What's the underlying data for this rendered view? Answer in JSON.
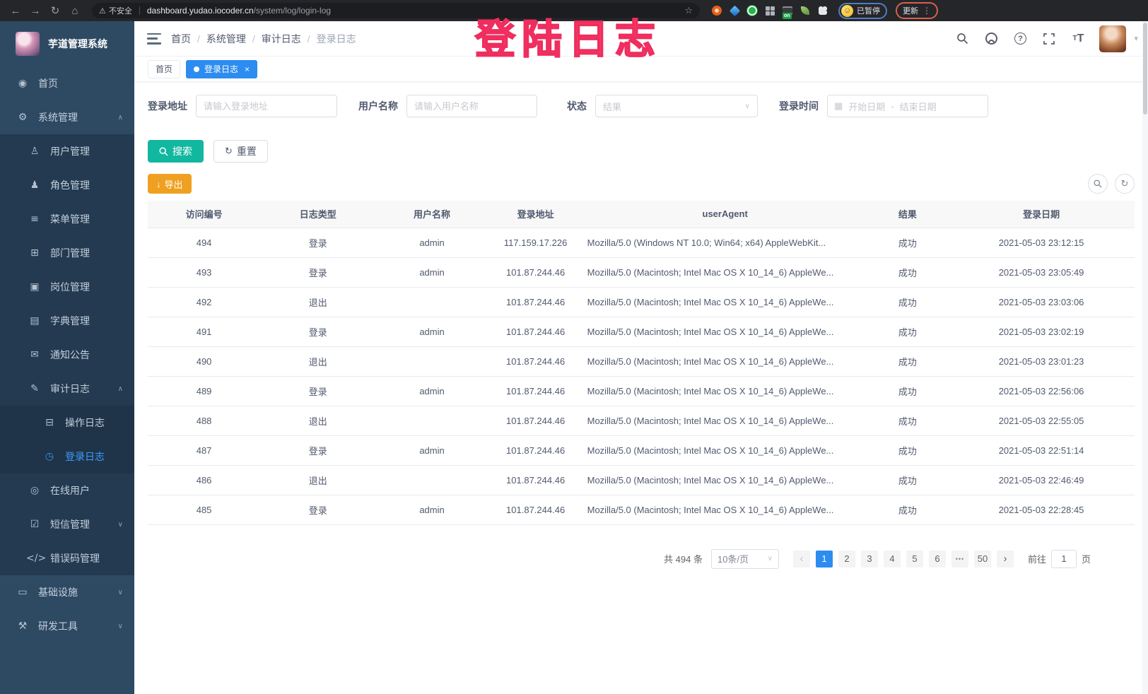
{
  "browser": {
    "security_label": "不安全",
    "url_domain": "dashboard.yudao.iocoder.cn",
    "url_path": "/system/log/login-log",
    "ext_badge": "on",
    "profile_paused": "已暂停",
    "update_button": "更新"
  },
  "annotation": "登陆日志",
  "sidebar": {
    "title": "芋道管理系统",
    "items": [
      {
        "label": "首页",
        "level": 0,
        "icon": "dashboard"
      },
      {
        "label": "系统管理",
        "level": 0,
        "icon": "system",
        "arrow": "up"
      },
      {
        "label": "用户管理",
        "level": 1,
        "icon": "user"
      },
      {
        "label": "角色管理",
        "level": 1,
        "icon": "role"
      },
      {
        "label": "菜单管理",
        "level": 1,
        "icon": "menu"
      },
      {
        "label": "部门管理",
        "level": 1,
        "icon": "dept"
      },
      {
        "label": "岗位管理",
        "level": 1,
        "icon": "post"
      },
      {
        "label": "字典管理",
        "level": 1,
        "icon": "dict"
      },
      {
        "label": "通知公告",
        "level": 1,
        "icon": "notice"
      },
      {
        "label": "审计日志",
        "level": 1,
        "icon": "audit-log",
        "arrow": "up"
      },
      {
        "label": "操作日志",
        "level": 2,
        "icon": "operate-log"
      },
      {
        "label": "登录日志",
        "level": 2,
        "icon": "login-log",
        "active": true
      },
      {
        "label": "在线用户",
        "level": 1,
        "icon": "online-user"
      },
      {
        "label": "短信管理",
        "level": 1,
        "icon": "sms",
        "arrow": "down"
      },
      {
        "label": "错误码管理",
        "level": 1,
        "icon": "error-code"
      },
      {
        "label": "基础设施",
        "level": 0,
        "icon": "infra",
        "arrow": "down"
      },
      {
        "label": "研发工具",
        "level": 0,
        "icon": "devtools",
        "arrow": "down"
      }
    ]
  },
  "breadcrumb": [
    "首页",
    "系统管理",
    "审计日志",
    "登录日志"
  ],
  "tabs": [
    {
      "label": "首页",
      "active": false
    },
    {
      "label": "登录日志",
      "active": true
    }
  ],
  "filters": {
    "login_address_label": "登录地址",
    "login_address_placeholder": "请输入登录地址",
    "username_label": "用户名称",
    "username_placeholder": "请输入用户名称",
    "status_label": "状态",
    "status_placeholder": "结果",
    "login_time_label": "登录时间",
    "date_start_placeholder": "开始日期",
    "date_separator": "-",
    "date_end_placeholder": "结束日期",
    "search_button": "搜索",
    "reset_button": "重置"
  },
  "toolbar": {
    "export_button": "导出"
  },
  "table": {
    "headers": [
      "访问编号",
      "日志类型",
      "用户名称",
      "登录地址",
      "userAgent",
      "结果",
      "登录日期"
    ],
    "rows": [
      [
        "494",
        "登录",
        "admin",
        "117.159.17.226",
        "Mozilla/5.0 (Windows NT 10.0; Win64; x64) AppleWebKit...",
        "成功",
        "2021-05-03 23:12:15"
      ],
      [
        "493",
        "登录",
        "admin",
        "101.87.244.46",
        "Mozilla/5.0 (Macintosh; Intel Mac OS X 10_14_6) AppleWe...",
        "成功",
        "2021-05-03 23:05:49"
      ],
      [
        "492",
        "退出",
        "",
        "101.87.244.46",
        "Mozilla/5.0 (Macintosh; Intel Mac OS X 10_14_6) AppleWe...",
        "成功",
        "2021-05-03 23:03:06"
      ],
      [
        "491",
        "登录",
        "admin",
        "101.87.244.46",
        "Mozilla/5.0 (Macintosh; Intel Mac OS X 10_14_6) AppleWe...",
        "成功",
        "2021-05-03 23:02:19"
      ],
      [
        "490",
        "退出",
        "",
        "101.87.244.46",
        "Mozilla/5.0 (Macintosh; Intel Mac OS X 10_14_6) AppleWe...",
        "成功",
        "2021-05-03 23:01:23"
      ],
      [
        "489",
        "登录",
        "admin",
        "101.87.244.46",
        "Mozilla/5.0 (Macintosh; Intel Mac OS X 10_14_6) AppleWe...",
        "成功",
        "2021-05-03 22:56:06"
      ],
      [
        "488",
        "退出",
        "",
        "101.87.244.46",
        "Mozilla/5.0 (Macintosh; Intel Mac OS X 10_14_6) AppleWe...",
        "成功",
        "2021-05-03 22:55:05"
      ],
      [
        "487",
        "登录",
        "admin",
        "101.87.244.46",
        "Mozilla/5.0 (Macintosh; Intel Mac OS X 10_14_6) AppleWe...",
        "成功",
        "2021-05-03 22:51:14"
      ],
      [
        "486",
        "退出",
        "",
        "101.87.244.46",
        "Mozilla/5.0 (Macintosh; Intel Mac OS X 10_14_6) AppleWe...",
        "成功",
        "2021-05-03 22:46:49"
      ],
      [
        "485",
        "登录",
        "admin",
        "101.87.244.46",
        "Mozilla/5.0 (Macintosh; Intel Mac OS X 10_14_6) AppleWe...",
        "成功",
        "2021-05-03 22:28:45"
      ]
    ]
  },
  "pagination": {
    "total": "共 494 条",
    "page_size": "10条/页",
    "pages": [
      "1",
      "2",
      "3",
      "4",
      "5",
      "6",
      "•••",
      "50"
    ],
    "active_page": "1",
    "prev_icon": "‹",
    "next_icon": "›",
    "goto_label": "前往",
    "goto_value": "1",
    "goto_unit": "页"
  },
  "colors": {
    "primary_blue": "#2d8cf0",
    "menu_active_blue": "#3e9bff",
    "search_teal": "#12b7a0",
    "export_orange": "#f0a020",
    "annotation_pink": "#fa4870",
    "sidebar_bg": "#2e4a63",
    "sidebar_submenu_bg": "#233a50"
  }
}
